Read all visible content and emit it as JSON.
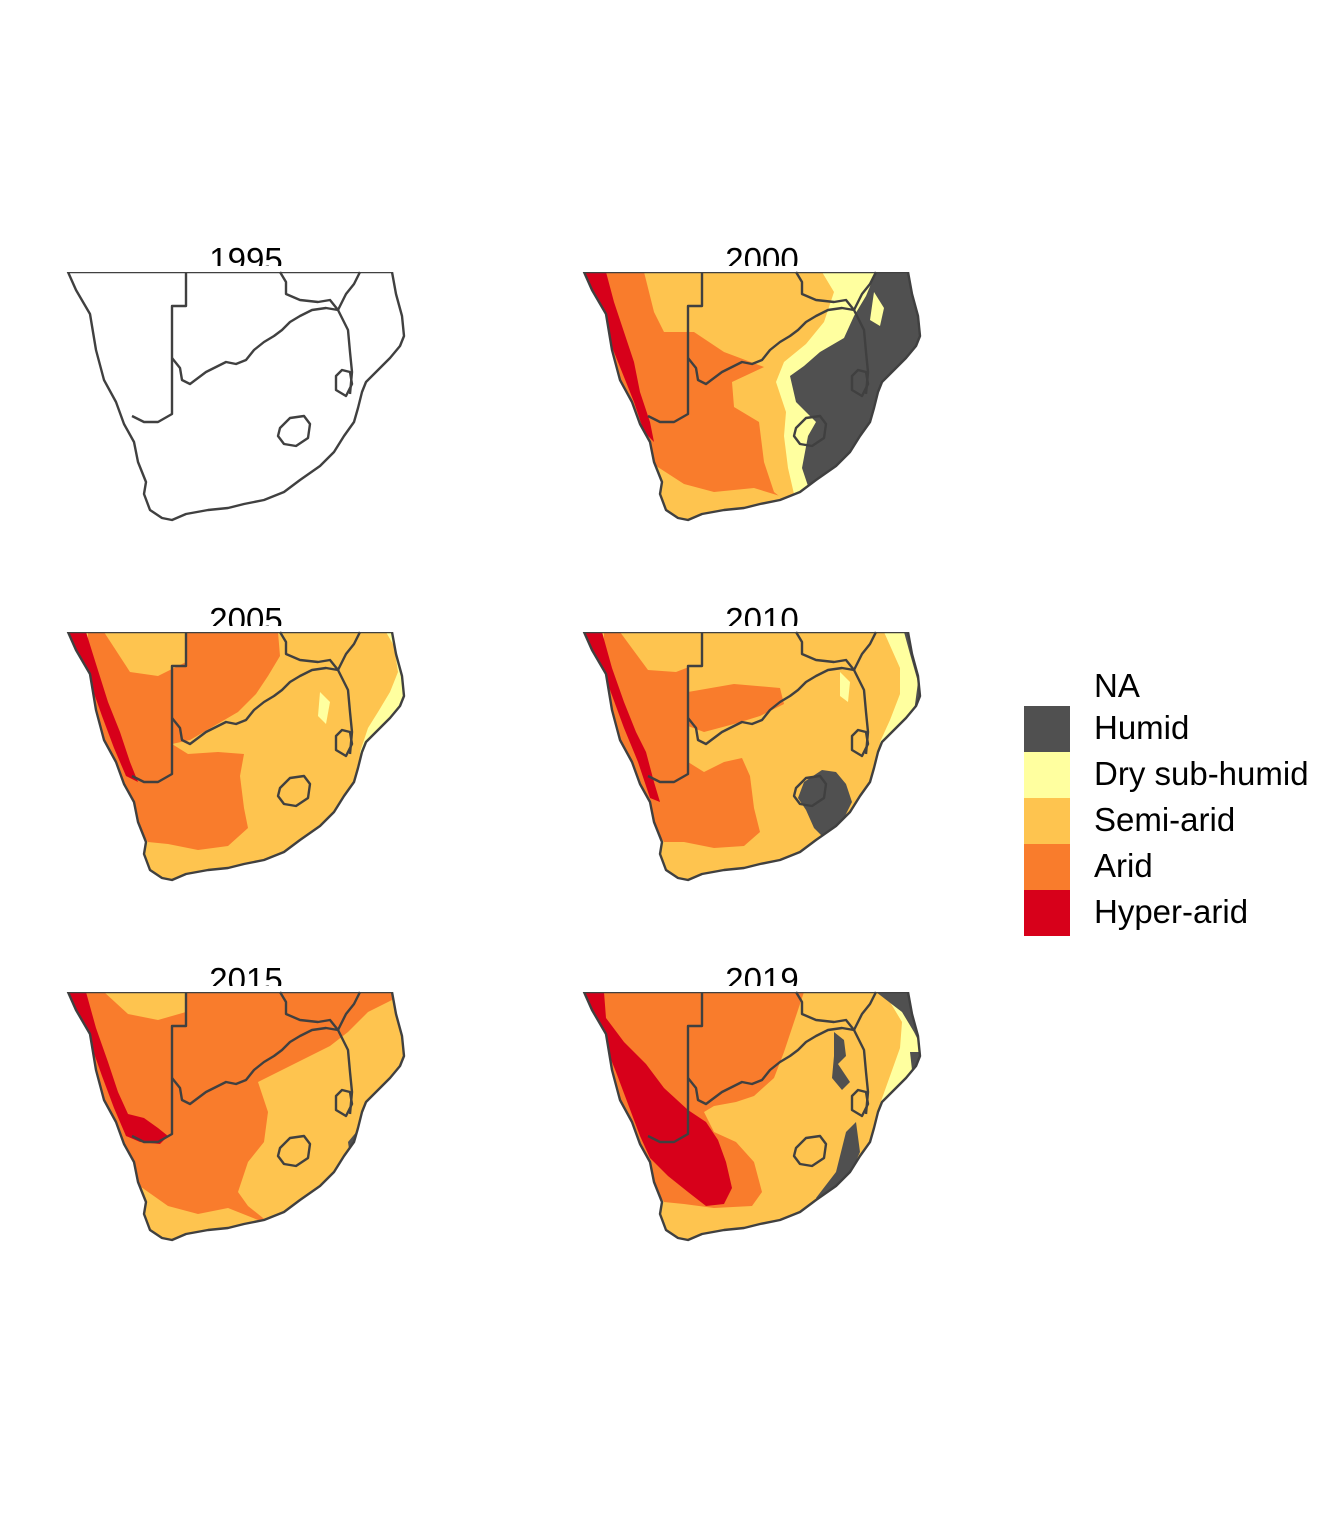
{
  "panels": [
    {
      "year": "1995",
      "pattern": "empty"
    },
    {
      "year": "2000",
      "pattern": "y2000"
    },
    {
      "year": "2005",
      "pattern": "y2005"
    },
    {
      "year": "2010",
      "pattern": "y2010"
    },
    {
      "year": "2015",
      "pattern": "y2015"
    },
    {
      "year": "2019",
      "pattern": "y2019"
    }
  ],
  "legend": [
    {
      "label": "NA",
      "color": ""
    },
    {
      "label": "Humid",
      "color": "#505050"
    },
    {
      "label": "Dry sub-humid",
      "color": "#FFFF9F"
    },
    {
      "label": "Semi-arid",
      "color": "#FEC44F"
    },
    {
      "label": "Arid",
      "color": "#F97C2C"
    },
    {
      "label": "Hyper-arid",
      "color": "#D7001A"
    }
  ],
  "colors": {
    "border": "#404040",
    "humid": "#505050",
    "dry_sub_humid": "#FFFF9F",
    "semi_arid": "#FEC44F",
    "arid": "#F97C2C",
    "hyper_arid": "#D7001A"
  }
}
